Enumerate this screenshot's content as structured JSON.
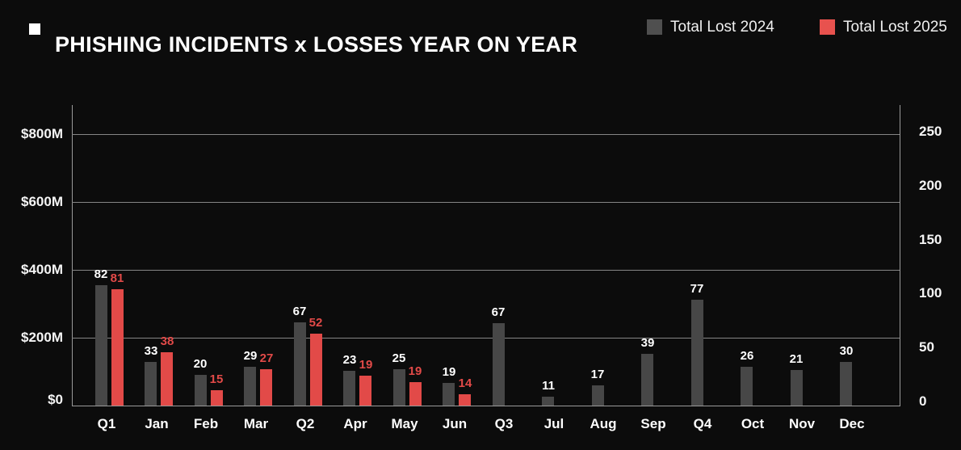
{
  "header": {
    "title": "PHISHING INCIDENTS x LOSSES YEAR ON YEAR"
  },
  "legend": [
    {
      "label": "Total Lost 2024",
      "color": "#4f4f4f"
    },
    {
      "label": "Total Lost 2025",
      "color": "#e8524e"
    }
  ],
  "colors": {
    "background": "#0c0c0c",
    "grid": "#858585",
    "axis": "#9a9a9a",
    "bar_2024": "#474747",
    "bar_2025": "#e24a48",
    "value_label_2024": "#ffffff",
    "value_label_2025": "#e24a48",
    "text": "#ffffff"
  },
  "chart_data": {
    "type": "bar",
    "title": "PHISHING INCIDENTS x LOSSES YEAR ON YEAR",
    "grid": true,
    "legend_position": "top-right",
    "categories": [
      "Q1",
      "Jan",
      "Feb",
      "Mar",
      "Q2",
      "Apr",
      "May",
      "Jun",
      "Q3",
      "Jul",
      "Aug",
      "Sep",
      "Q4",
      "Oct",
      "Nov",
      "Dec"
    ],
    "left_axis": {
      "unit": "USD millions",
      "ticks": [
        {
          "label": "$0",
          "value": 0
        },
        {
          "label": "$200M",
          "value": 200
        },
        {
          "label": "$400M",
          "value": 400
        },
        {
          "label": "$600M",
          "value": 600
        },
        {
          "label": "$800M",
          "value": 800
        }
      ],
      "range": [
        0,
        886
      ]
    },
    "right_axis": {
      "unit": "incident count",
      "ticks": [
        {
          "label": "0",
          "value": 0
        },
        {
          "label": "50",
          "value": 50
        },
        {
          "label": "100",
          "value": 100
        },
        {
          "label": "150",
          "value": 150
        },
        {
          "label": "200",
          "value": 200
        },
        {
          "label": "250",
          "value": 250
        }
      ],
      "range": [
        0,
        250
      ]
    },
    "series": [
      {
        "name": "Total Lost 2024",
        "color": "#474747",
        "value_labels": [
          82,
          33,
          20,
          29,
          67,
          23,
          25,
          19,
          67,
          11,
          17,
          39,
          77,
          26,
          21,
          30
        ],
        "bar_values_musd": [
          355,
          129,
          90,
          114,
          245,
          102,
          106,
          67,
          243,
          27,
          59,
          153,
          311,
          114,
          104,
          128
        ]
      },
      {
        "name": "Total Lost 2025",
        "color": "#e24a48",
        "value_labels": [
          81,
          38,
          15,
          27,
          52,
          19,
          19,
          14,
          null,
          null,
          null,
          null,
          null,
          null,
          null,
          null
        ],
        "bar_values_musd": [
          342,
          157,
          45,
          106,
          211,
          88,
          68,
          34,
          null,
          null,
          null,
          null,
          null,
          null,
          null,
          null
        ]
      }
    ]
  }
}
